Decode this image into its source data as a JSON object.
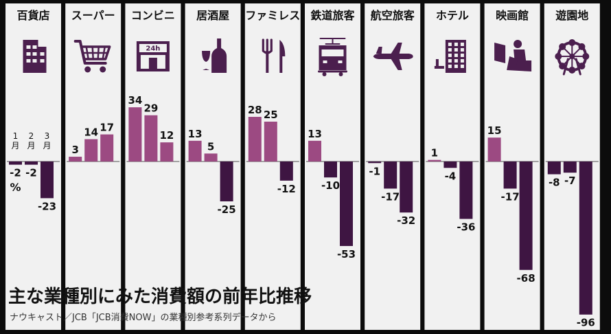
{
  "chart_data": {
    "type": "bar",
    "title": "主な業種別にみた消費額の前年比推移",
    "subtitle": "ナウキャスト／JCB「JCB消費NOW」の業種別参考系列データから",
    "unit": "%",
    "month_labels": [
      "1月",
      "2月",
      "3月"
    ],
    "ylim": [
      -100,
      40
    ],
    "colors": {
      "positive": "#9c4a82",
      "negative": "#3e1542",
      "panel": "#f1f1f1",
      "text": "#111111",
      "icon": "#4b1f4e"
    },
    "categories": [
      {
        "name": "百貨店",
        "icon": "department-store-icon",
        "values": [
          -2,
          -2,
          -23
        ]
      },
      {
        "name": "スーパー",
        "icon": "shopping-cart-icon",
        "values": [
          3,
          14,
          17
        ]
      },
      {
        "name": "コンビニ",
        "icon": "convenience-store-icon",
        "values": [
          34,
          29,
          12
        ],
        "icon_text": "24h"
      },
      {
        "name": "居酒屋",
        "icon": "wine-bottle-icon",
        "values": [
          13,
          5,
          -25
        ]
      },
      {
        "name": "ファミレス",
        "icon": "fork-knife-icon",
        "values": [
          28,
          25,
          -12
        ]
      },
      {
        "name": "鉄道旅客",
        "icon": "train-icon",
        "values": [
          13,
          -10,
          -53
        ]
      },
      {
        "name": "航空旅客",
        "icon": "airplane-icon",
        "values": [
          -1,
          -17,
          -32
        ]
      },
      {
        "name": "ホテル",
        "icon": "hotel-icon",
        "values": [
          1,
          -4,
          -36
        ]
      },
      {
        "name": "映画館",
        "icon": "cinema-seat-icon",
        "values": [
          15,
          -17,
          -68
        ]
      },
      {
        "name": "遊園地",
        "icon": "ferris-wheel-icon",
        "values": [
          -8,
          -7,
          -96
        ]
      }
    ]
  }
}
